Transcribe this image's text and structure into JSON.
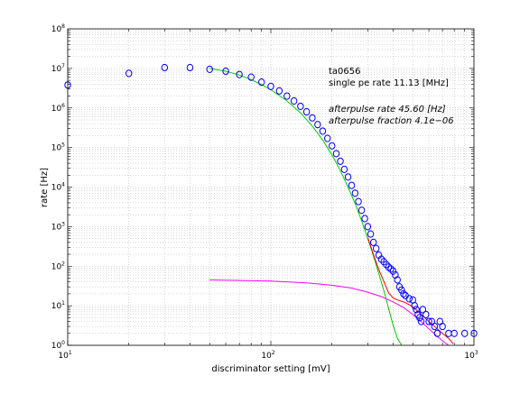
{
  "chart_data": {
    "type": "scatter",
    "xlabel": "discriminator setting [mV]",
    "ylabel": "rate [Hz]",
    "xscale": "log",
    "yscale": "log",
    "xlim": [
      10,
      1000
    ],
    "ylim": [
      1,
      100000000
    ],
    "grid": true,
    "x_ticks": [
      {
        "base": "10",
        "exp": "1",
        "value": 10
      },
      {
        "base": "10",
        "exp": "2",
        "value": 100
      },
      {
        "base": "10",
        "exp": "3",
        "value": 1000
      }
    ],
    "y_ticks": [
      {
        "base": "10",
        "exp": "0",
        "value": 1
      },
      {
        "base": "10",
        "exp": "1",
        "value": 10
      },
      {
        "base": "10",
        "exp": "2",
        "value": 100
      },
      {
        "base": "10",
        "exp": "3",
        "value": 1000
      },
      {
        "base": "10",
        "exp": "4",
        "value": 10000
      },
      {
        "base": "10",
        "exp": "5",
        "value": 100000
      },
      {
        "base": "10",
        "exp": "6",
        "value": 1000000
      },
      {
        "base": "10",
        "exp": "7",
        "value": 10000000
      },
      {
        "base": "10",
        "exp": "8",
        "value": 100000000
      }
    ],
    "annotations": {
      "line1": "ta0656",
      "line2": "single pe rate 11.13 [MHz]",
      "line3": "afterpulse rate 45.60 [Hz]",
      "line4": "afterpulse fraction 4.1e−06"
    },
    "series": [
      {
        "marker": "circle",
        "color": "#0000ff",
        "x": [
          10,
          20,
          30,
          40,
          50,
          60,
          70,
          80,
          90,
          100,
          110,
          120,
          130,
          140,
          150,
          160,
          170,
          180,
          190,
          200,
          210,
          220,
          230,
          240,
          250,
          260,
          270,
          280,
          290,
          300,
          310,
          320,
          330,
          340,
          350,
          360,
          370,
          380,
          390,
          400,
          410,
          420,
          430,
          440,
          450,
          460,
          480,
          500,
          510,
          520,
          530,
          540,
          550,
          560,
          580,
          600,
          620,
          640,
          660,
          680,
          700,
          750,
          800,
          900,
          1000
        ],
        "y": [
          3800000,
          7500000,
          10500000,
          10500000,
          9500000,
          8500000,
          7000000,
          6000000,
          4500000,
          3500000,
          2700000,
          2000000,
          1500000,
          1100000,
          800000,
          560000,
          380000,
          260000,
          170000,
          110000,
          70000,
          45000,
          28000,
          18000,
          11000,
          7000,
          4300,
          2600,
          1600,
          1000,
          650,
          400,
          280,
          190,
          150,
          130,
          110,
          95,
          85,
          75,
          60,
          45,
          30,
          25,
          20,
          18,
          15,
          14,
          10,
          8,
          6,
          5,
          4,
          8,
          6,
          4,
          4,
          3,
          2,
          4,
          3,
          2,
          2,
          2,
          2
        ]
      }
    ],
    "fit_curves": [
      {
        "color": "#00cc00",
        "x": [
          50,
          60,
          70,
          80,
          90,
          100,
          120,
          140,
          160,
          180,
          200,
          220,
          240,
          260,
          280,
          300,
          320,
          340,
          360,
          380,
          400,
          420,
          440
        ],
        "y": [
          10000000,
          8500000,
          6800000,
          5200000,
          3900000,
          2900000,
          1500000,
          750000,
          350000,
          155000,
          65000,
          26000,
          10000,
          3800,
          1400,
          500,
          180,
          65,
          24,
          8.5,
          3.2,
          1.5,
          1
        ]
      },
      {
        "color": "#ff00ff",
        "x": [
          50,
          100,
          150,
          200,
          250,
          300,
          350,
          400,
          450,
          500,
          550,
          600,
          650,
          700,
          750
        ],
        "y": [
          45,
          42,
          38,
          33,
          28,
          22,
          17,
          12.5,
          9,
          6,
          4,
          2.6,
          1.8,
          1.3,
          1
        ]
      },
      {
        "color": "#ff0000",
        "x": [
          300,
          320,
          340,
          360,
          380,
          400,
          420,
          440,
          460,
          480,
          500,
          550,
          600,
          650,
          700,
          750,
          790
        ],
        "y": [
          522,
          197,
          82,
          41,
          21,
          15.7,
          14,
          13,
          12,
          10.6,
          9.5,
          6,
          4,
          2.8,
          2,
          1.5,
          1.1
        ]
      }
    ]
  }
}
